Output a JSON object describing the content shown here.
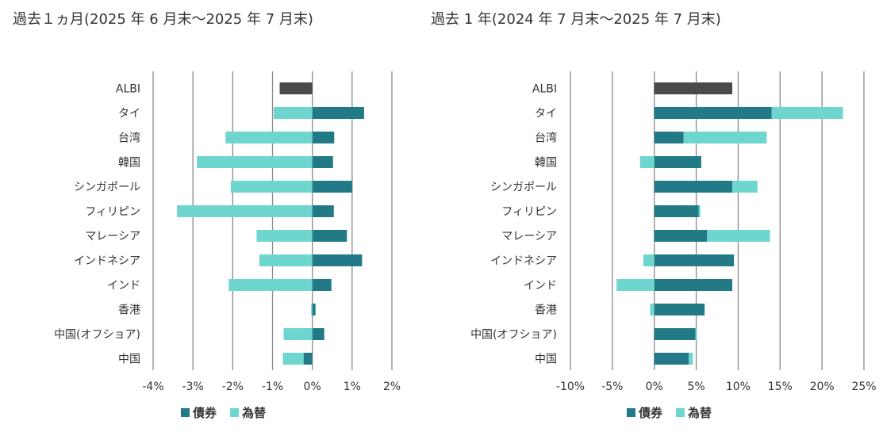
{
  "colors": {
    "bond": "#227a86",
    "fx": "#6fd6cf",
    "albi": "#4a4a4a",
    "grid": "#8a8a8a"
  },
  "legend": {
    "bond": "債券",
    "fx": "為替"
  },
  "chart_data": [
    {
      "type": "bar",
      "orientation": "horizontal",
      "stacked": true,
      "title": "過去１ヵ月(2025 年 6 月末～2025 年 7 月末)",
      "categories": [
        "ALBI",
        "タイ",
        "台湾",
        "韓国",
        "シンガポール",
        "フィリピン",
        "マレーシア",
        "インドネシア",
        "インド",
        "香港",
        "中国(オフショア)",
        "中国"
      ],
      "series": [
        {
          "name": "債券",
          "values": [
            null,
            1.3,
            0.55,
            0.52,
            1.0,
            0.54,
            0.87,
            1.25,
            0.48,
            0.08,
            0.3,
            -0.22
          ]
        },
        {
          "name": "為替",
          "values": [
            null,
            -0.97,
            -2.18,
            -2.9,
            -2.05,
            -3.4,
            -1.4,
            -1.33,
            -2.1,
            -0.03,
            -0.72,
            -0.52
          ]
        },
        {
          "name": "ALBI",
          "values": [
            -0.82,
            null,
            null,
            null,
            null,
            null,
            null,
            null,
            null,
            null,
            null,
            null
          ]
        }
      ],
      "xlim": [
        -4,
        2
      ],
      "ticks": [
        -4,
        -3,
        -2,
        -1,
        0,
        1,
        2
      ],
      "tick_labels": [
        "-4%",
        "-3%",
        "-2%",
        "-1%",
        "0%",
        "1%",
        "2%"
      ],
      "grid": true,
      "legend_position": "bottom-center"
    },
    {
      "type": "bar",
      "orientation": "horizontal",
      "stacked": true,
      "title": "過去 1 年(2024 年 7 月末～2025 年 7 月末)",
      "categories": [
        "ALBI",
        "タイ",
        "台湾",
        "韓国",
        "シンガポール",
        "フィリピン",
        "マレーシア",
        "インドネシア",
        "インド",
        "香港",
        "中国(オフショア)",
        "中国"
      ],
      "series": [
        {
          "name": "債券",
          "values": [
            null,
            14.0,
            3.5,
            5.6,
            9.3,
            5.3,
            6.3,
            9.5,
            9.3,
            6.0,
            4.9,
            4.1
          ]
        },
        {
          "name": "為替",
          "values": [
            null,
            8.5,
            9.9,
            -1.7,
            3.0,
            0.2,
            7.5,
            -1.3,
            -4.5,
            -0.5,
            0.2,
            0.5
          ]
        },
        {
          "name": "ALBI",
          "values": [
            9.3,
            null,
            null,
            null,
            null,
            null,
            null,
            null,
            null,
            null,
            null,
            null
          ]
        }
      ],
      "xlim": [
        -10,
        25
      ],
      "ticks": [
        -10,
        -5,
        0,
        5,
        10,
        15,
        20,
        25
      ],
      "tick_labels": [
        "-10%",
        "-5%",
        "0%",
        "5%",
        "10%",
        "15%",
        "20%",
        "25%"
      ],
      "grid": true,
      "legend_position": "bottom-center"
    }
  ]
}
